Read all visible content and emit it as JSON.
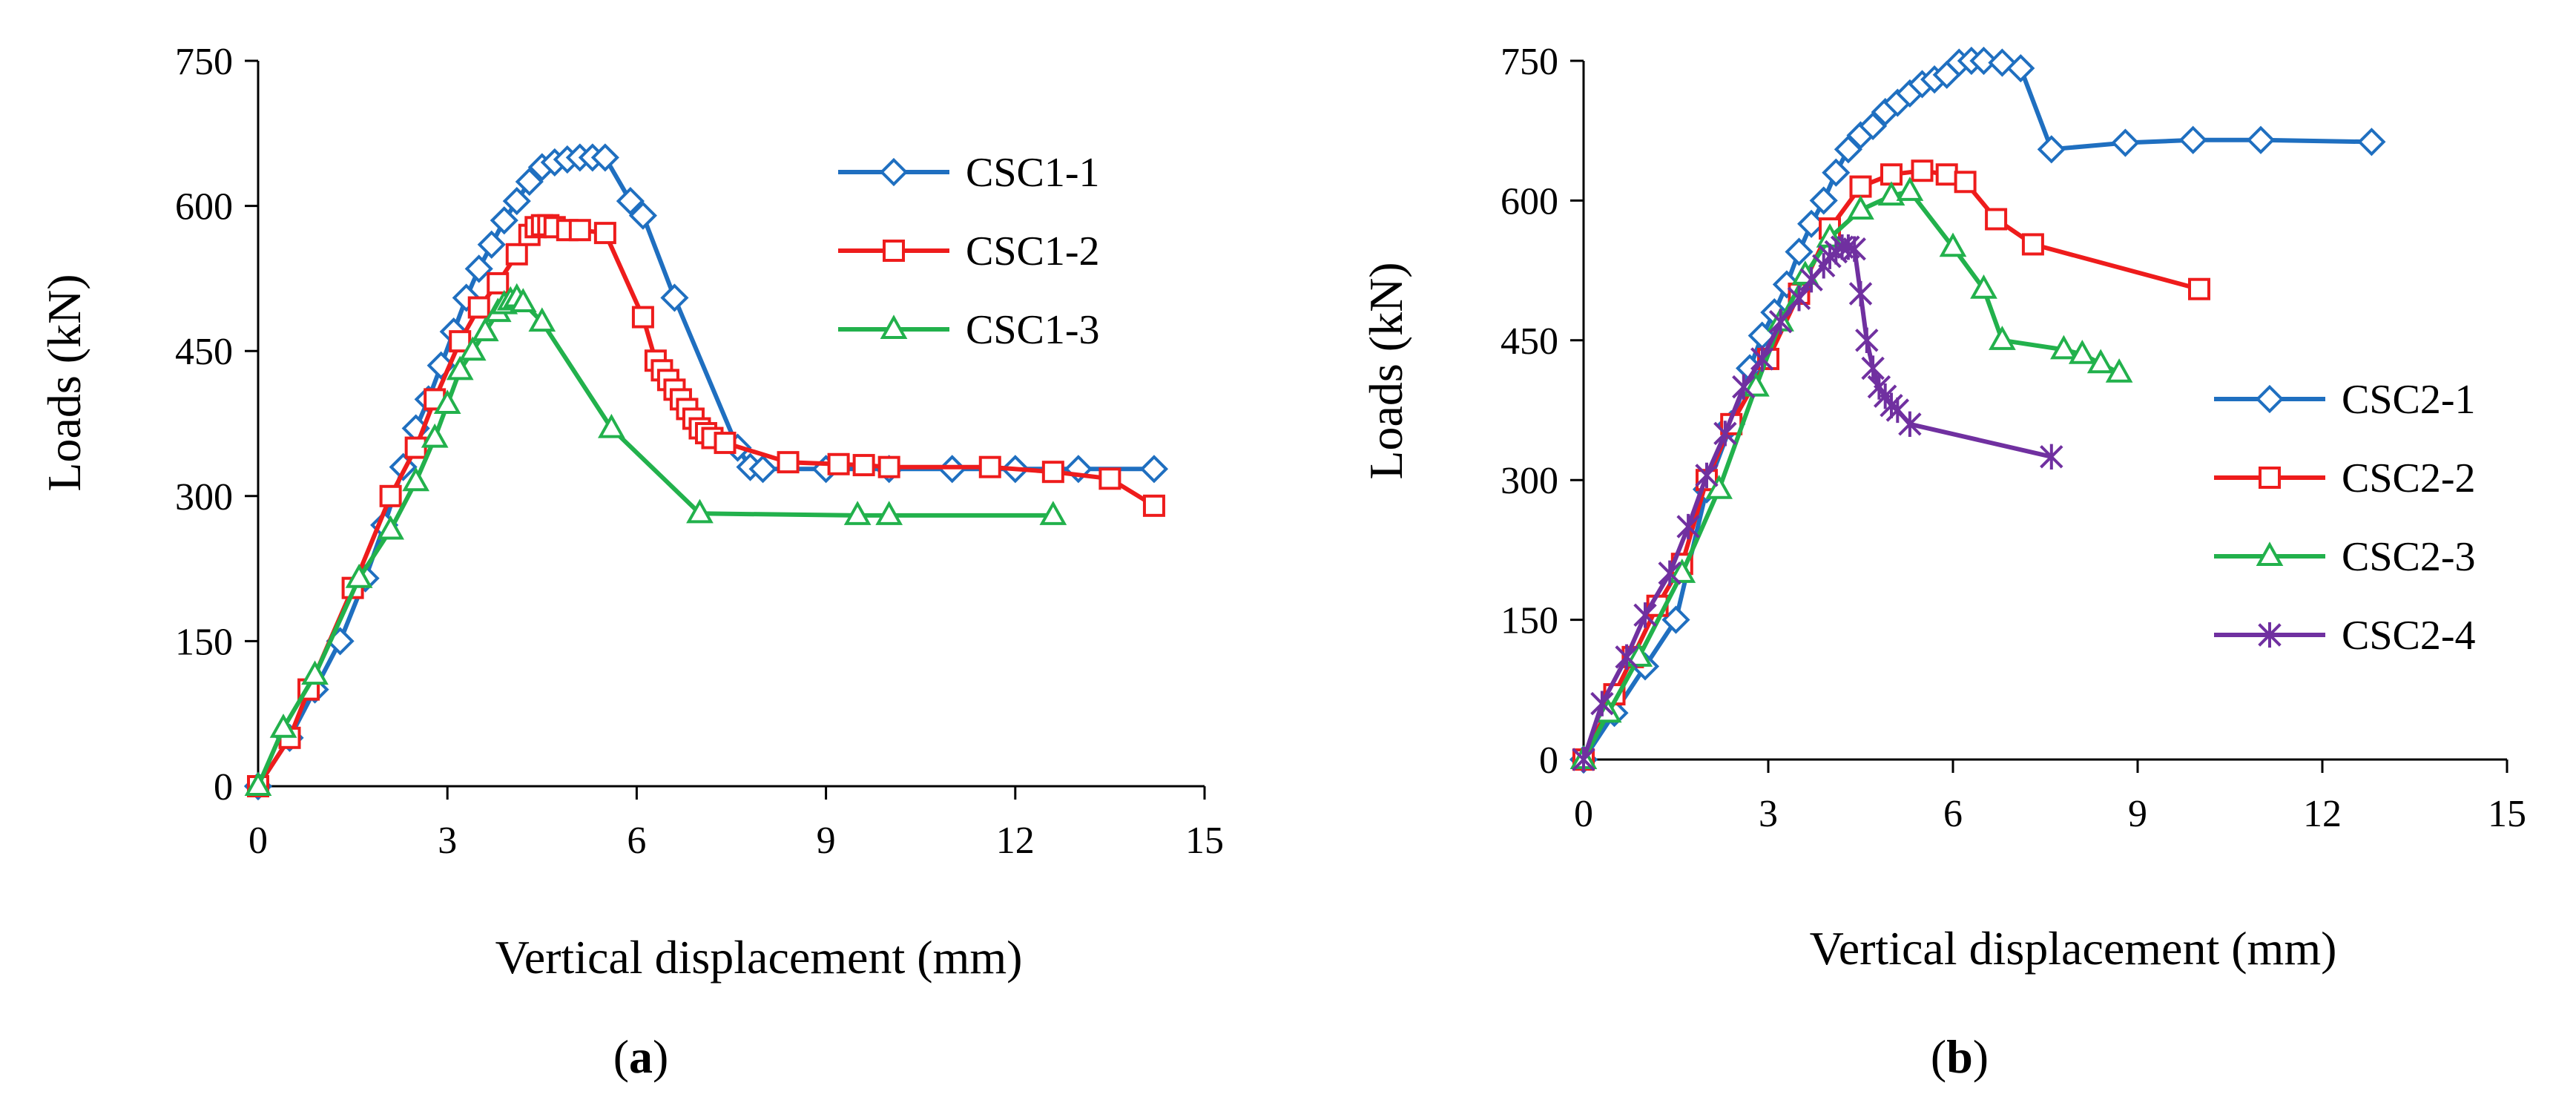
{
  "chart_data": [
    {
      "type": "line",
      "panel": "a",
      "caption_open": "(",
      "caption_letter": "a",
      "caption_close": ")",
      "xlabel": "Vertical displacement (mm)",
      "ylabel": "Loads (kN)",
      "xlim": [
        0,
        15
      ],
      "ylim": [
        0,
        750
      ],
      "xticks": [
        "0",
        "3",
        "6",
        "9",
        "12",
        "15"
      ],
      "yticks": [
        "0",
        "150",
        "300",
        "450",
        "600",
        "750"
      ],
      "legend_position": "top-right",
      "series": [
        {
          "name": "CSC1-1",
          "color": "#1f6fc0",
          "marker": "diamond",
          "x": [
            0,
            0.5,
            0.9,
            1.3,
            1.7,
            2.0,
            2.3,
            2.5,
            2.7,
            2.9,
            3.1,
            3.3,
            3.5,
            3.7,
            3.9,
            4.1,
            4.3,
            4.5,
            4.7,
            4.9,
            5.1,
            5.3,
            5.5,
            5.9,
            6.1,
            6.6,
            7.6,
            7.8,
            8.0,
            9.0,
            10.0,
            11.0,
            12.0,
            13.0,
            14.2
          ],
          "y": [
            0,
            50,
            100,
            150,
            215,
            270,
            330,
            370,
            400,
            435,
            470,
            505,
            535,
            560,
            585,
            605,
            625,
            640,
            645,
            648,
            650,
            650,
            650,
            605,
            590,
            505,
            350,
            330,
            328,
            328,
            328,
            328,
            328,
            328,
            328
          ]
        },
        {
          "name": "CSC1-2",
          "color": "#ee1c1c",
          "marker": "square",
          "x": [
            0,
            0.5,
            0.8,
            1.5,
            2.1,
            2.5,
            2.8,
            3.2,
            3.5,
            3.8,
            4.1,
            4.3,
            4.4,
            4.5,
            4.6,
            4.7,
            4.9,
            5.1,
            5.5,
            6.1,
            6.3,
            6.4,
            6.5,
            6.6,
            6.7,
            6.8,
            6.9,
            7.0,
            7.1,
            7.2,
            7.4,
            8.4,
            9.2,
            9.6,
            10.0,
            11.6,
            12.6,
            13.5,
            14.2
          ],
          "y": [
            0,
            50,
            100,
            205,
            300,
            350,
            400,
            460,
            495,
            520,
            550,
            570,
            578,
            580,
            580,
            578,
            575,
            575,
            572,
            485,
            440,
            430,
            420,
            410,
            400,
            390,
            380,
            370,
            365,
            360,
            355,
            335,
            333,
            332,
            330,
            330,
            325,
            318,
            290
          ]
        },
        {
          "name": "CSC1-3",
          "color": "#22b14c",
          "marker": "triangle",
          "x": [
            0,
            0.4,
            0.9,
            1.6,
            2.1,
            2.5,
            2.8,
            3.0,
            3.2,
            3.4,
            3.6,
            3.8,
            3.9,
            4.0,
            4.1,
            4.2,
            4.5,
            5.6,
            7.0,
            9.5,
            10.0,
            12.6
          ],
          "y": [
            0,
            60,
            115,
            215,
            265,
            315,
            360,
            395,
            430,
            450,
            470,
            490,
            498,
            502,
            505,
            500,
            480,
            370,
            282,
            280,
            280,
            280
          ]
        }
      ]
    },
    {
      "type": "line",
      "panel": "b",
      "caption_open": "(",
      "caption_letter": "b",
      "caption_close": ")",
      "xlabel": "Vertical displacement (mm)",
      "ylabel": "Loads (kN)",
      "xlim": [
        0,
        15
      ],
      "ylim": [
        0,
        750
      ],
      "xticks": [
        "0",
        "3",
        "6",
        "9",
        "12",
        "15"
      ],
      "yticks": [
        "0",
        "150",
        "300",
        "450",
        "600",
        "750"
      ],
      "legend_position": "bottom-right",
      "series": [
        {
          "name": "CSC2-1",
          "color": "#1f6fc0",
          "marker": "diamond",
          "x": [
            0,
            0.5,
            1.0,
            1.5,
            2.0,
            2.4,
            2.7,
            2.9,
            3.1,
            3.3,
            3.5,
            3.7,
            3.9,
            4.1,
            4.3,
            4.5,
            4.7,
            4.9,
            5.1,
            5.3,
            5.5,
            5.7,
            5.9,
            6.1,
            6.3,
            6.5,
            6.8,
            7.1,
            7.6,
            8.8,
            9.9,
            11.0,
            12.8
          ],
          "y": [
            0,
            50,
            100,
            150,
            290,
            360,
            420,
            455,
            480,
            510,
            545,
            575,
            600,
            630,
            655,
            670,
            680,
            695,
            705,
            715,
            725,
            730,
            735,
            748,
            750,
            750,
            748,
            742,
            655,
            662,
            665,
            665,
            663
          ]
        },
        {
          "name": "CSC2-2",
          "color": "#ee1c1c",
          "marker": "square",
          "x": [
            0,
            0.5,
            0.8,
            1.2,
            1.6,
            2.0,
            2.4,
            3.0,
            3.5,
            4.0,
            4.5,
            5.0,
            5.5,
            5.9,
            6.2,
            6.7,
            7.3,
            10.0
          ],
          "y": [
            0,
            70,
            110,
            165,
            210,
            300,
            360,
            430,
            500,
            570,
            615,
            628,
            632,
            628,
            620,
            580,
            553,
            505
          ]
        },
        {
          "name": "CSC2-3",
          "color": "#22b14c",
          "marker": "triangle",
          "x": [
            0,
            0.4,
            0.9,
            1.6,
            2.2,
            2.8,
            3.2,
            3.6,
            4.0,
            4.5,
            5.0,
            5.3,
            6.0,
            6.5,
            6.8,
            7.8,
            8.1,
            8.4,
            8.7
          ],
          "y": [
            0,
            50,
            110,
            200,
            290,
            400,
            470,
            520,
            560,
            590,
            605,
            610,
            550,
            505,
            450,
            440,
            435,
            425,
            415
          ]
        },
        {
          "name": "CSC2-4",
          "color": "#7030a0",
          "marker": "star",
          "x": [
            0,
            0.3,
            0.7,
            1.0,
            1.4,
            1.7,
            2.0,
            2.3,
            2.6,
            2.9,
            3.2,
            3.5,
            3.7,
            3.9,
            4.0,
            4.1,
            4.2,
            4.3,
            4.4,
            4.5,
            4.6,
            4.7,
            4.8,
            4.9,
            5.0,
            5.1,
            5.3,
            7.6
          ],
          "y": [
            0,
            60,
            110,
            155,
            200,
            250,
            305,
            350,
            400,
            430,
            470,
            495,
            515,
            530,
            540,
            545,
            550,
            550,
            548,
            500,
            450,
            420,
            400,
            390,
            380,
            375,
            360,
            325
          ]
        }
      ]
    }
  ]
}
